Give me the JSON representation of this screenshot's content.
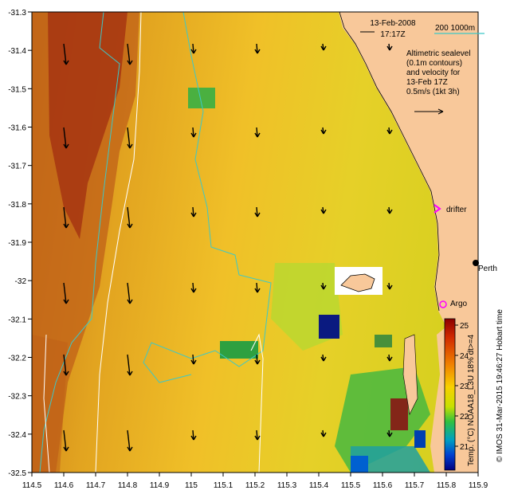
{
  "header": {
    "date": "13-Feb-2008",
    "time": "17:17Z"
  },
  "scale": {
    "label": "200  1000m",
    "line_color": "#3cc8c8"
  },
  "info": {
    "line1": "Altimetric sealevel",
    "line2": "(0.1m contours)",
    "line3": "and velocity for",
    "line4": "13-Feb 17Z",
    "line5": "0.5m/s (1kt 3h)"
  },
  "places": {
    "perth": "Perth",
    "drifter": "drifter",
    "argo": "Argo"
  },
  "colorbar": {
    "caption": "Temp. (°C) NOAA18_L3U 18% dt>=4",
    "ticks": [
      "25",
      "24",
      "23",
      "22",
      "21"
    ]
  },
  "credit": "© IMOS 31-Mar-2015 19:46:27 Hobart time",
  "axes": {
    "x_ticks": [
      "114.5",
      "114.6",
      "114.7",
      "114.8",
      "114.9",
      "115",
      "115.1",
      "115.2",
      "115.3",
      "115.4",
      "115.5",
      "115.6",
      "115.7",
      "115.8",
      "115.9"
    ],
    "y_ticks": [
      "-31.3",
      "-31.4",
      "-31.5",
      "-31.6",
      "-31.7",
      "-31.8",
      "-31.9",
      "-32",
      "-32.1",
      "-32.2",
      "-32.3",
      "-32.4",
      "-32.5"
    ]
  },
  "colors": {
    "land": "#f8c89a",
    "contour": "#3cc8c8",
    "drifter_marker": "#ff00ff",
    "argo_marker": "#ff00ff"
  }
}
